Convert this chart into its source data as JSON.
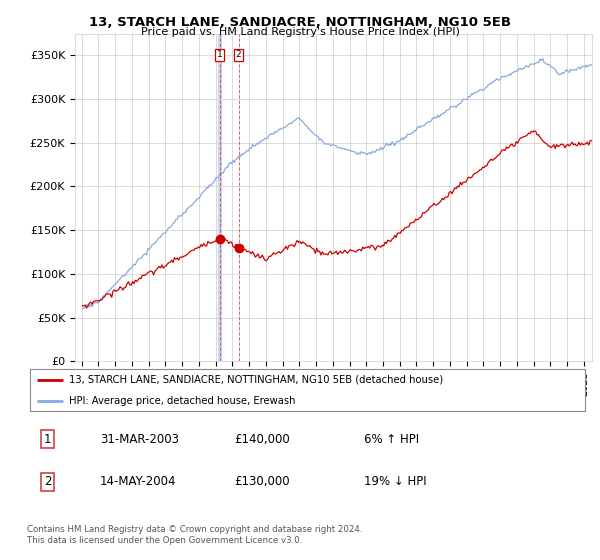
{
  "title": "13, STARCH LANE, SANDIACRE, NOTTINGHAM, NG10 5EB",
  "subtitle": "Price paid vs. HM Land Registry's House Price Index (HPI)",
  "legend_line1": "13, STARCH LANE, SANDIACRE, NOTTINGHAM, NG10 5EB (detached house)",
  "legend_line2": "HPI: Average price, detached house, Erewash",
  "transaction1_date": "31-MAR-2003",
  "transaction1_price": "£140,000",
  "transaction1_hpi": "6% ↑ HPI",
  "transaction2_date": "14-MAY-2004",
  "transaction2_price": "£130,000",
  "transaction2_hpi": "19% ↓ HPI",
  "footer": "Contains HM Land Registry data © Crown copyright and database right 2024.\nThis data is licensed under the Open Government Licence v3.0.",
  "price_color": "#cc0000",
  "hpi_color": "#88aadd",
  "ylim": [
    0,
    375000
  ],
  "yticks": [
    0,
    50000,
    100000,
    150000,
    200000,
    250000,
    300000,
    350000
  ],
  "ytick_labels": [
    "£0",
    "£50K",
    "£100K",
    "£150K",
    "£200K",
    "£250K",
    "£300K",
    "£350K"
  ],
  "background_color": "#ffffff",
  "grid_color": "#cccccc",
  "tx1_x": 2003.25,
  "tx1_y": 140000,
  "tx2_x": 2004.37,
  "tx2_y": 130000,
  "xmin": 1994.6,
  "xmax": 2025.5
}
